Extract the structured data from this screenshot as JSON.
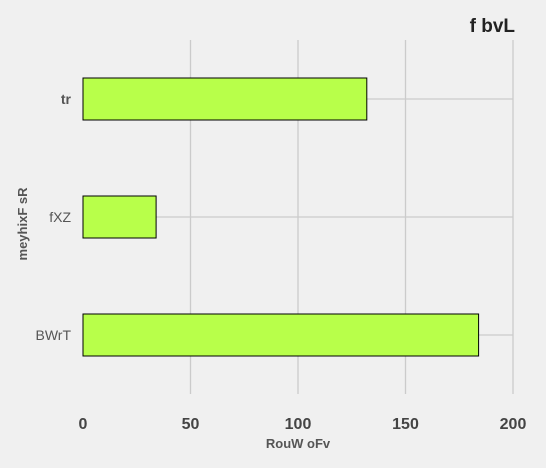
{
  "chart_data": {
    "type": "bar",
    "orientation": "horizontal",
    "title": "f bvL",
    "xlabel": "RouW  oFv",
    "ylabel": "meyhixF sR",
    "categories": [
      "tr",
      "fXZ",
      "BWrT"
    ],
    "values": [
      132,
      34,
      184
    ],
    "xlim": [
      0,
      200
    ],
    "xticks": [
      0,
      50,
      100,
      150,
      200
    ],
    "grid": true,
    "bar_color": "#b8ff4a",
    "bar_edge_color": "#000000",
    "background_color": "#f0f0f0",
    "grid_color": "#cbcbcb"
  }
}
